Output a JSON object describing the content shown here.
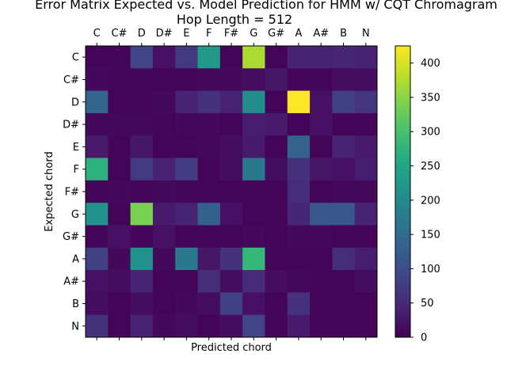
{
  "chart_data": {
    "type": "heatmap",
    "title": "Error Matrix Expected vs. Model Prediction for HMM w/ CQT Chromagram",
    "subtitle": "Hop Length = 512",
    "xlabel": "Predicted chord",
    "ylabel": "Expected chord",
    "x_categories": [
      "C",
      "C#",
      "D",
      "D#",
      "E",
      "F",
      "F#",
      "G",
      "G#",
      "A",
      "A#",
      "B",
      "N"
    ],
    "y_categories": [
      "C",
      "C#",
      "D",
      "D#",
      "E",
      "F",
      "F#",
      "G",
      "G#",
      "A",
      "A#",
      "B",
      "N"
    ],
    "colormap": "viridis",
    "value_range": [
      0,
      425
    ],
    "colorbar_ticks": [
      0,
      50,
      100,
      150,
      200,
      250,
      300,
      350,
      400
    ],
    "grid": false,
    "values": [
      [
        5,
        5,
        85,
        20,
        70,
        230,
        5,
        370,
        5,
        40,
        40,
        45,
        40
      ],
      [
        10,
        5,
        5,
        5,
        5,
        10,
        10,
        15,
        25,
        5,
        5,
        15,
        15
      ],
      [
        140,
        5,
        5,
        10,
        40,
        60,
        40,
        205,
        5,
        425,
        20,
        80,
        65
      ],
      [
        10,
        10,
        10,
        5,
        10,
        10,
        5,
        35,
        30,
        5,
        20,
        5,
        5
      ],
      [
        30,
        5,
        25,
        5,
        5,
        10,
        15,
        30,
        5,
        135,
        5,
        40,
        30
      ],
      [
        270,
        5,
        70,
        40,
        75,
        5,
        15,
        170,
        15,
        60,
        25,
        20,
        35
      ],
      [
        5,
        10,
        5,
        10,
        5,
        5,
        5,
        5,
        5,
        55,
        5,
        10,
        10
      ],
      [
        215,
        5,
        340,
        30,
        40,
        130,
        20,
        5,
        5,
        45,
        115,
        115,
        40
      ],
      [
        5,
        20,
        5,
        20,
        5,
        5,
        5,
        10,
        5,
        10,
        10,
        5,
        5
      ],
      [
        80,
        10,
        215,
        10,
        170,
        25,
        60,
        280,
        5,
        5,
        5,
        55,
        35
      ],
      [
        20,
        15,
        40,
        5,
        5,
        55,
        15,
        50,
        15,
        10,
        5,
        5,
        15
      ],
      [
        15,
        5,
        15,
        5,
        10,
        15,
        80,
        20,
        5,
        60,
        5,
        5,
        5
      ],
      [
        60,
        5,
        40,
        10,
        15,
        5,
        15,
        85,
        5,
        30,
        5,
        5,
        5
      ]
    ]
  }
}
